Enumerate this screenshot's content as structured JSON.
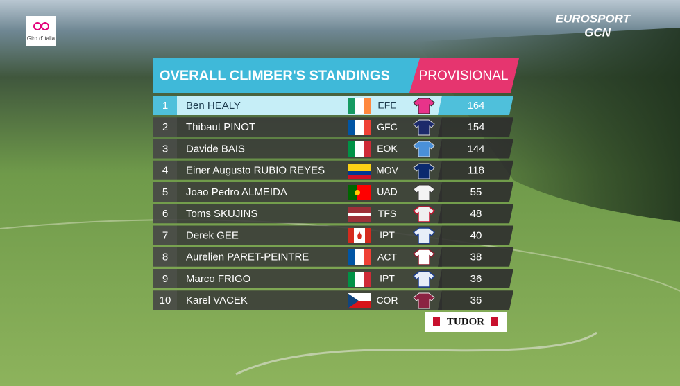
{
  "event_logo": "Giro d'Italia",
  "broadcaster": {
    "logo_top": "EUROSPORT",
    "logo_bottom": "GCN"
  },
  "standings": {
    "title": "OVERALL CLIMBER'S STANDINGS",
    "status": "PROVISIONAL",
    "rows": [
      {
        "rank": 1,
        "name": "Ben HEALY",
        "team": "EFE",
        "points": 164
      },
      {
        "rank": 2,
        "name": "Thibaut PINOT",
        "team": "GFC",
        "points": 154
      },
      {
        "rank": 3,
        "name": "Davide BAIS",
        "team": "EOK",
        "points": 144
      },
      {
        "rank": 4,
        "name": "Einer Augusto RUBIO REYES",
        "team": "MOV",
        "points": 118
      },
      {
        "rank": 5,
        "name": "Joao Pedro ALMEIDA",
        "team": "UAD",
        "points": 55
      },
      {
        "rank": 6,
        "name": "Toms SKUJINS",
        "team": "TFS",
        "points": 48
      },
      {
        "rank": 7,
        "name": "Derek GEE",
        "team": "IPT",
        "points": 40
      },
      {
        "rank": 8,
        "name": "Aurelien PARET-PEINTRE",
        "team": "ACT",
        "points": 38
      },
      {
        "rank": 9,
        "name": "Marco FRIGO",
        "team": "IPT",
        "points": 36
      },
      {
        "rank": 10,
        "name": "Karel VACEK",
        "team": "COR",
        "points": 36
      }
    ]
  },
  "sponsor": "TUDOR"
}
